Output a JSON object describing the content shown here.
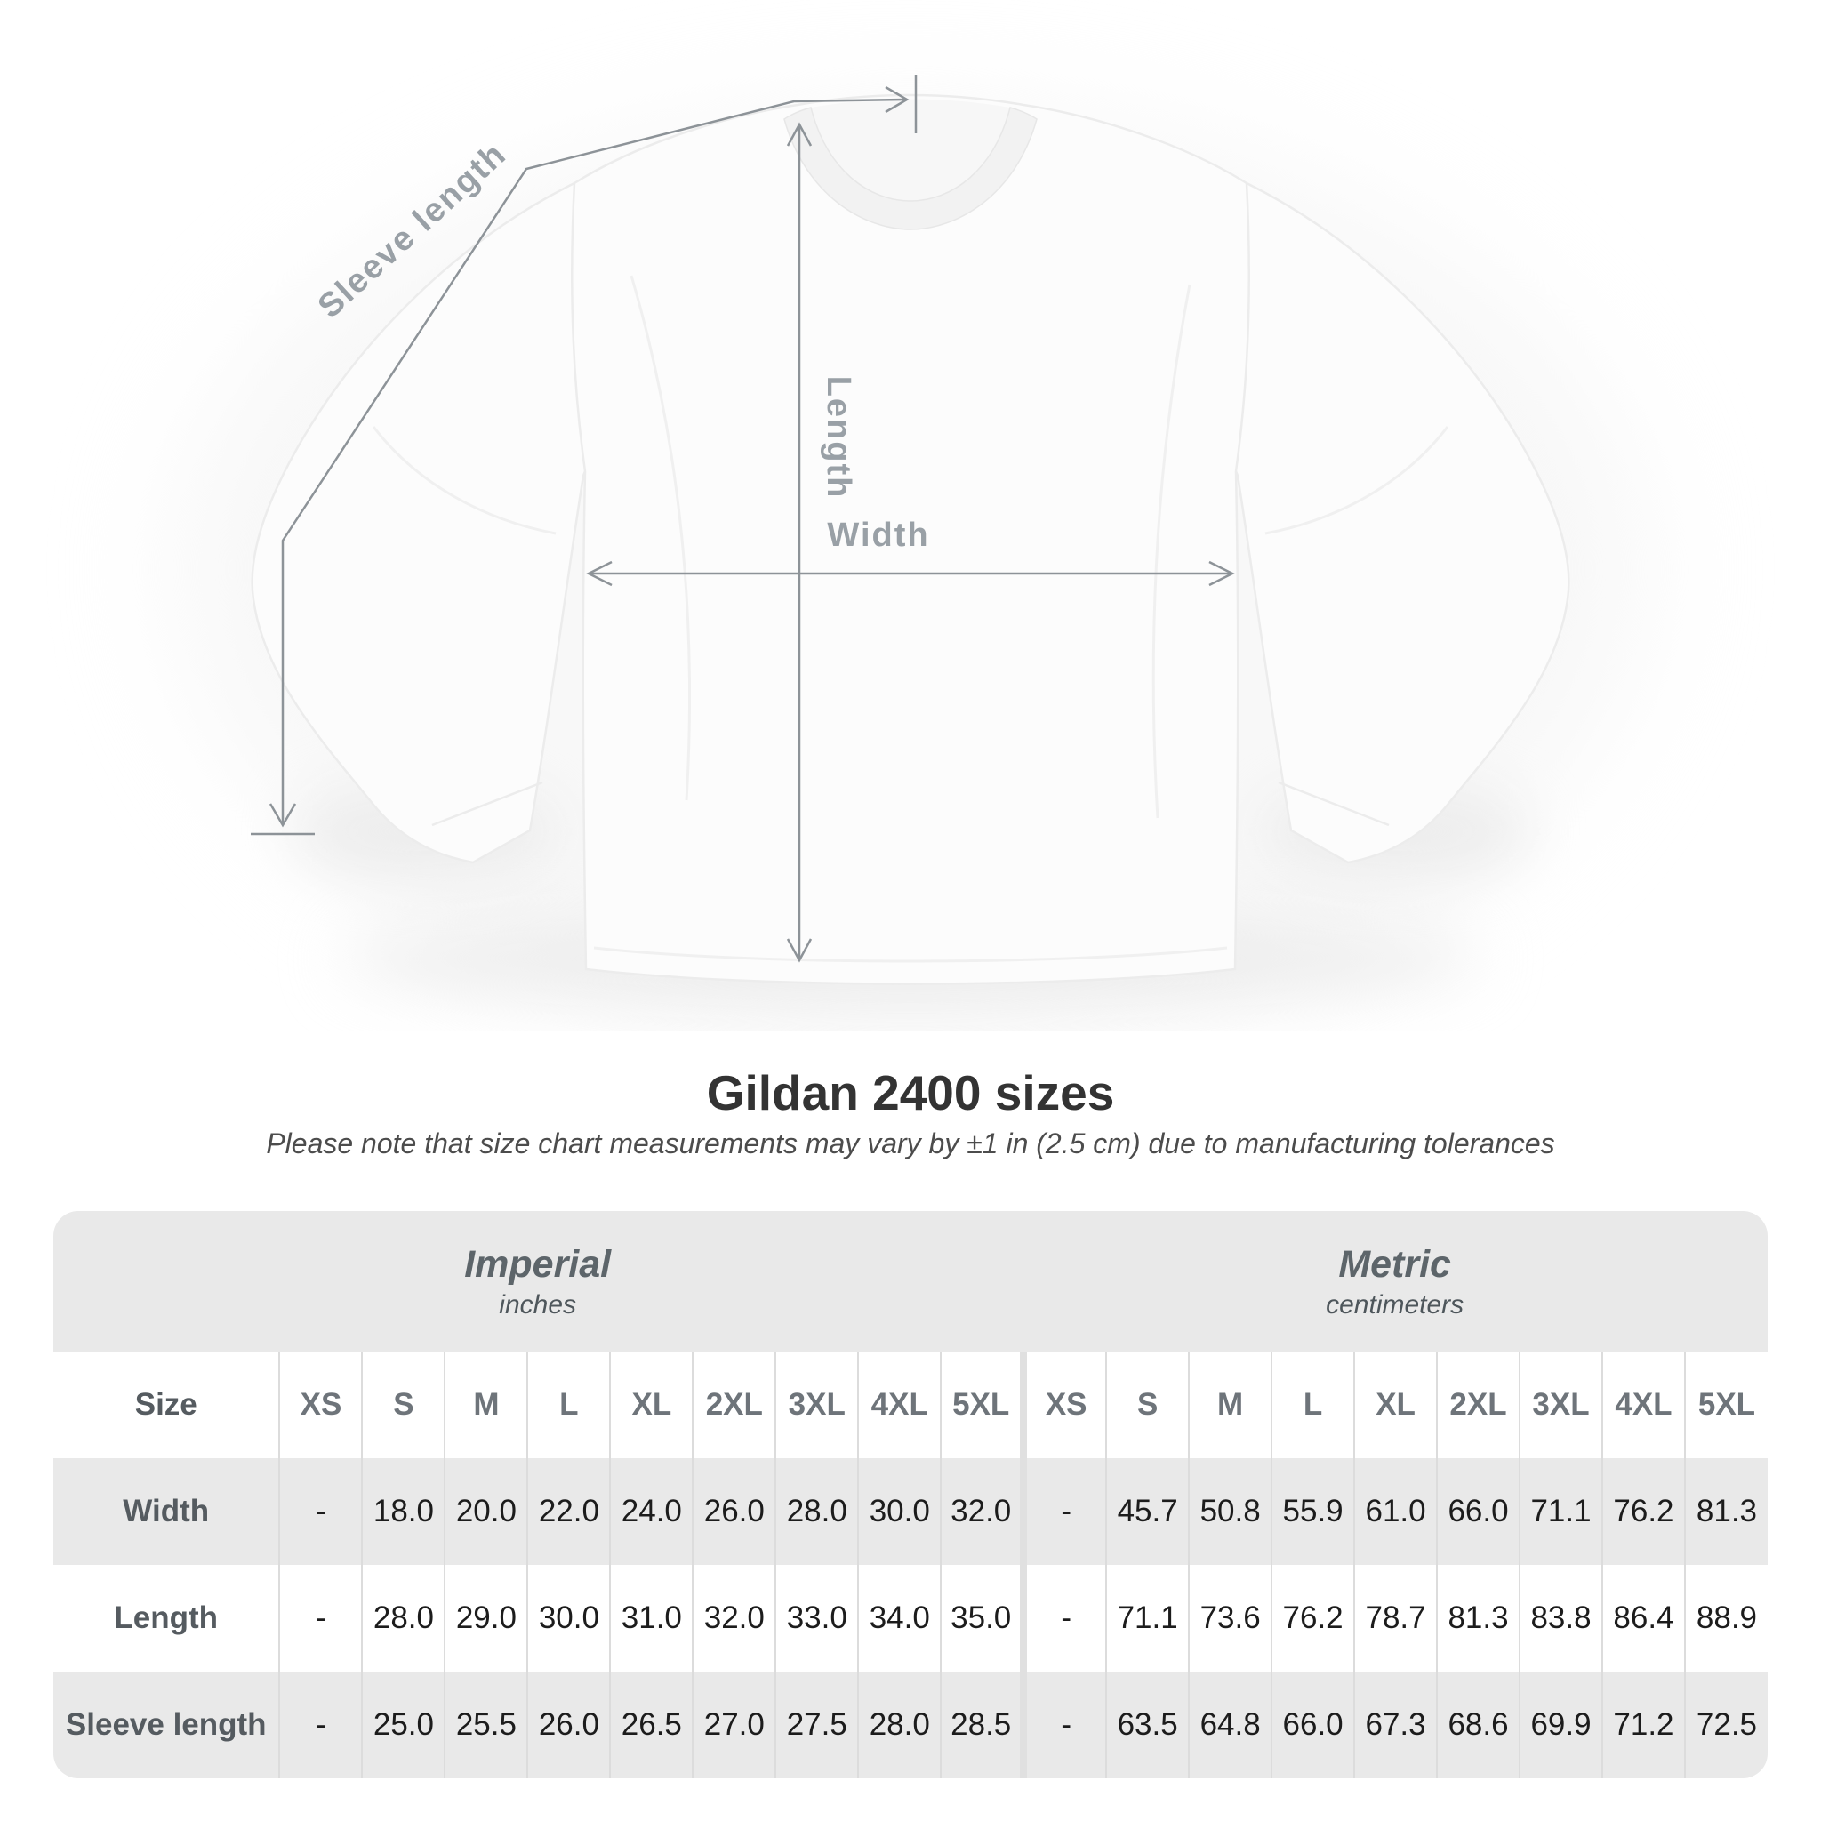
{
  "title": "Gildan 2400 sizes",
  "subtitle": "Please note that size chart measurements may vary by ±1 in (2.5 cm) due to manufacturing tolerances",
  "diagram": {
    "labels": {
      "sleeve_length": "Sleeve length",
      "length": "Length",
      "width": "Width"
    }
  },
  "size_table": {
    "size_column_header": "Size",
    "unit_groups": [
      {
        "name": "Imperial",
        "unit": "inches"
      },
      {
        "name": "Metric",
        "unit": "centimeters"
      }
    ],
    "size_headers": [
      "XS",
      "S",
      "M",
      "L",
      "XL",
      "2XL",
      "3XL",
      "4XL",
      "5XL"
    ],
    "rows": [
      {
        "label": "Width",
        "imperial": [
          "-",
          "18.0",
          "20.0",
          "22.0",
          "24.0",
          "26.0",
          "28.0",
          "30.0",
          "32.0"
        ],
        "metric": [
          "-",
          "45.7",
          "50.8",
          "55.9",
          "61.0",
          "66.0",
          "71.1",
          "76.2",
          "81.3"
        ]
      },
      {
        "label": "Length",
        "imperial": [
          "-",
          "28.0",
          "29.0",
          "30.0",
          "31.0",
          "32.0",
          "33.0",
          "34.0",
          "35.0"
        ],
        "metric": [
          "-",
          "71.1",
          "73.6",
          "76.2",
          "78.7",
          "81.3",
          "83.8",
          "86.4",
          "88.9"
        ]
      },
      {
        "label": "Sleeve length",
        "imperial": [
          "-",
          "25.0",
          "25.5",
          "26.0",
          "26.5",
          "27.0",
          "27.5",
          "28.0",
          "28.5"
        ],
        "metric": [
          "-",
          "63.5",
          "64.8",
          "66.0",
          "67.3",
          "68.6",
          "69.9",
          "71.2",
          "72.5"
        ]
      }
    ]
  },
  "colors": {
    "page_background": "#ffffff",
    "table_band_gray": "#e9e9e9",
    "row_alt_gray": "#e9e9e9",
    "cell_separator": "#dcdcdc",
    "measurement_line": "#8d9398",
    "diagram_label": "#99a0a6",
    "title_text": "#333333",
    "value_text": "#1c1c1c",
    "header_text": "#6e747a"
  }
}
